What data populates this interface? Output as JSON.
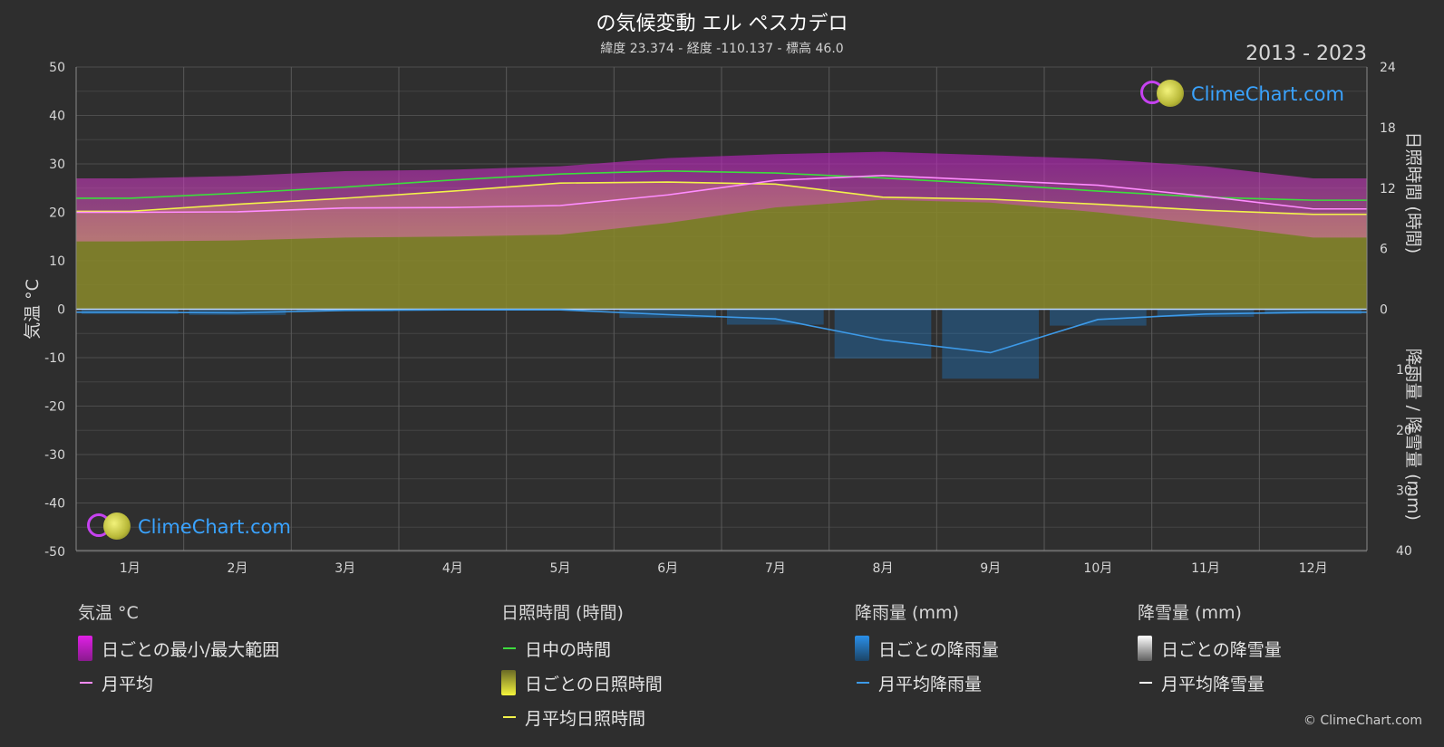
{
  "header": {
    "title": "の気候変動 エル ペスカデロ",
    "subtitle": "緯度 23.374 - 経度 -110.137 - 標高 46.0",
    "years": "2013 - 2023"
  },
  "brand": {
    "logo_text": "ClimeChart.com",
    "copyright": "© ClimeChart.com"
  },
  "axes": {
    "left_label": "気温 °C",
    "right_top_label": "日照時間 (時間)",
    "right_bottom_label": "降雨量 / 降雪量 (mm)"
  },
  "legend": {
    "temperature": {
      "heading": "気温 °C",
      "items": [
        "日ごとの最小/最大範囲",
        "月平均"
      ]
    },
    "sunshine": {
      "heading": "日照時間 (時間)",
      "items": [
        "日中の時間",
        "日ごとの日照時間",
        "月平均日照時間"
      ]
    },
    "rain": {
      "heading": "降雨量 (mm)",
      "items": [
        "日ごとの降雨量",
        "月平均降雨量"
      ]
    },
    "snow": {
      "heading": "降雪量 (mm)",
      "items": [
        "日ごとの降雪量",
        "月平均降雪量"
      ]
    }
  },
  "colors": {
    "background": "#2e2e2e",
    "grid": "#555555",
    "temp_range": "#c21ec8",
    "temp_mean": "#ff8cff",
    "daylight": "#3ddc3d",
    "sunshine_fill": "#8a8a2a",
    "sunshine_mean": "#f2f24a",
    "rain": "#1e82d8",
    "rain_mean": "#3d9ae8",
    "snow_mean": "#ffffff",
    "brand": "#3aa3ff"
  },
  "chart_data": {
    "type": "line",
    "months": [
      "1月",
      "2月",
      "3月",
      "4月",
      "5月",
      "6月",
      "7月",
      "8月",
      "9月",
      "10月",
      "11月",
      "12月"
    ],
    "temp_axis": {
      "ylim": [
        -50,
        50
      ],
      "ticks": [
        50,
        40,
        30,
        20,
        10,
        0,
        -10,
        -20,
        -30,
        -40,
        -50
      ]
    },
    "sun_axis": {
      "ylim": [
        0,
        24
      ],
      "ticks": [
        24,
        18,
        12,
        6,
        0
      ]
    },
    "precip_axis": {
      "ylim": [
        0,
        40
      ],
      "ticks": [
        0,
        10,
        20,
        30,
        40
      ]
    },
    "series": [
      {
        "name": "月平均",
        "unit": "°C",
        "values": [
          20.0,
          20.1,
          20.9,
          21.0,
          21.4,
          23.6,
          26.6,
          27.6,
          26.6,
          25.6,
          23.3,
          20.7
        ]
      },
      {
        "name": "日中の時間",
        "unit": "h",
        "values": [
          11.0,
          11.5,
          12.1,
          12.8,
          13.4,
          13.7,
          13.5,
          13.0,
          12.4,
          11.7,
          11.1,
          10.8
        ]
      },
      {
        "name": "月平均日照時間",
        "unit": "h",
        "values": [
          9.7,
          10.4,
          11.0,
          11.7,
          12.5,
          12.6,
          12.4,
          11.1,
          10.9,
          10.4,
          9.8,
          9.4
        ]
      },
      {
        "name": "月平均降雨量",
        "unit": "mm",
        "values": [
          0.5,
          0.6,
          0.2,
          0.1,
          0.1,
          0.9,
          1.6,
          5.1,
          7.2,
          1.7,
          0.8,
          0.5
        ]
      },
      {
        "name": "月平均降雪量",
        "unit": "mm",
        "values": [
          0,
          0,
          0,
          0,
          0,
          0,
          0,
          0,
          0,
          0,
          0,
          0
        ]
      }
    ],
    "temp_range": {
      "name": "日ごとの最小/最大範囲",
      "min": [
        14.0,
        14.2,
        14.8,
        15.0,
        15.4,
        17.8,
        21.0,
        22.6,
        22.0,
        20.0,
        17.5,
        14.8
      ],
      "max": [
        27.0,
        27.5,
        28.5,
        28.8,
        29.5,
        31.2,
        32.0,
        32.5,
        31.8,
        31.0,
        29.5,
        27.0
      ]
    }
  }
}
